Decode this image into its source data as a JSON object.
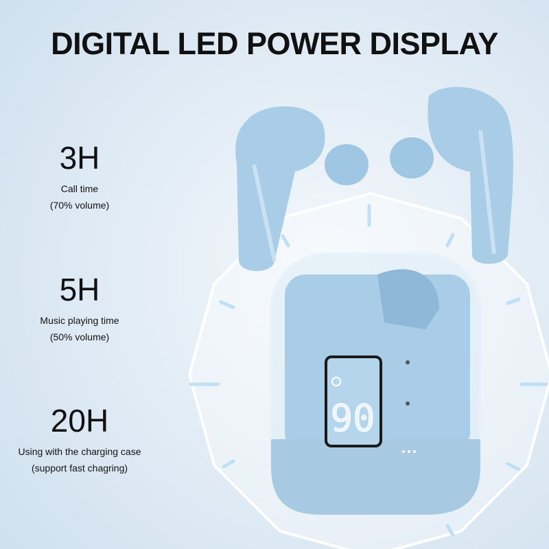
{
  "title": "DIGITAL LED POWER DISPLAY",
  "stats": [
    {
      "value": "3H",
      "line1": "Call time",
      "line2": "(70% volume)"
    },
    {
      "value": "5H",
      "line1": "Music playing time",
      "line2": "(50% volume)"
    },
    {
      "value": "20H",
      "line1": "Using with the charging case",
      "line2": "(support fast chagring)"
    }
  ],
  "led_display": {
    "battery_percent": "90"
  },
  "colors": {
    "earbud": "#a9cde6",
    "background": "#e3edf6",
    "led": "#e8f4ff"
  }
}
